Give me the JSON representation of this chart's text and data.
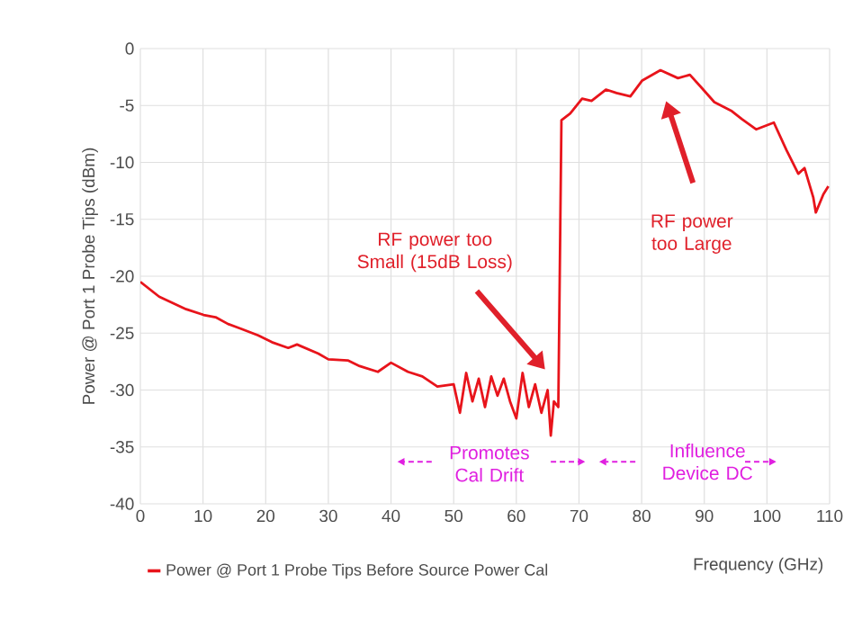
{
  "chart_data": {
    "type": "line",
    "xlabel": "Frequency (GHz)",
    "ylabel": "Power @ Port 1 Probe Tips (dBm)",
    "xlim": [
      0,
      110
    ],
    "xticks": [
      0,
      10,
      20,
      30,
      40,
      50,
      60,
      70,
      80,
      90,
      100,
      110
    ],
    "ylim": [
      -40,
      0
    ],
    "yticks": [
      -40,
      -35,
      -30,
      -25,
      -20,
      -15,
      -10,
      -5,
      0
    ],
    "grid": true,
    "legend": "bottom",
    "marker": "none",
    "line_style": "solid",
    "annotations": [
      "RF power too Small (15dB Loss)",
      "RF power too Large",
      "Promotes Cal Drift",
      "Influence Device DC"
    ],
    "series": [
      {
        "name": "Power @ Port 1 Probe Tips Before Source Power Cal",
        "color": "#e8141b",
        "x": [
          0,
          3,
          7.3,
          10.1,
          12,
          14,
          16,
          18.8,
          21,
          23.6,
          25,
          28.4,
          30,
          33.1,
          35,
          37.9,
          40,
          42.7,
          45,
          47.4,
          50,
          51,
          52,
          53,
          54,
          55,
          56,
          57,
          58,
          59,
          60,
          61,
          62,
          63,
          64,
          65,
          65.5,
          66,
          66.7,
          67.2,
          68.6,
          70.5,
          72,
          74.3,
          76,
          78.2,
          80.1,
          83,
          85.8,
          87.7,
          89.5,
          91.6,
          94.4,
          96,
          98.3,
          101.1,
          103.1,
          105,
          106,
          107.4,
          107.8,
          109,
          109.8
        ],
        "values": [
          -20.5,
          -21.8,
          -22.9,
          -23.4,
          -23.6,
          -24.2,
          -24.6,
          -25.2,
          -25.8,
          -26.3,
          -26.0,
          -26.8,
          -27.3,
          -27.4,
          -27.9,
          -28.4,
          -27.6,
          -28.4,
          -28.8,
          -29.7,
          -29.5,
          -32,
          -28.5,
          -31,
          -29,
          -31.5,
          -28.8,
          -30.5,
          -29,
          -31,
          -32.5,
          -28.5,
          -31.5,
          -29.5,
          -32,
          -30,
          -34,
          -31,
          -31.5,
          -6.3,
          -5.7,
          -4.4,
          -4.6,
          -3.6,
          -3.9,
          -4.2,
          -2.8,
          -1.9,
          -2.6,
          -2.3,
          -3.4,
          -4.7,
          -5.5,
          -6.2,
          -7.1,
          -6.5,
          -8.9,
          -11,
          -10.5,
          -13.1,
          -14.4,
          -12.8,
          -12.1
        ]
      }
    ]
  }
}
